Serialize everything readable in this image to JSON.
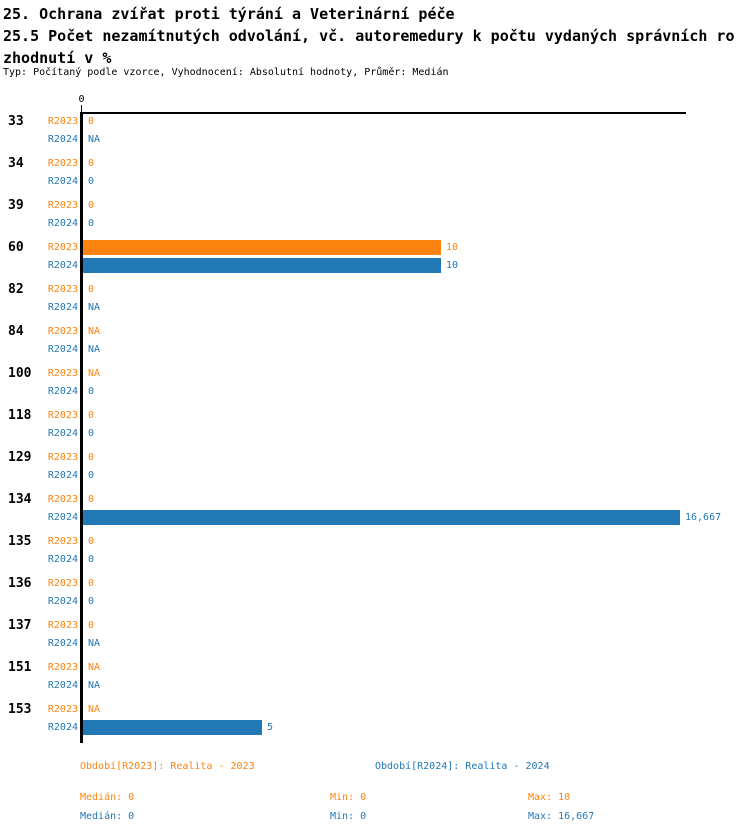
{
  "header": {
    "title": "25. Ochrana zvířat proti týrání a Veterinární péče",
    "subtitle_line1": "25.5 Počet nezamítnutých odvolání, vč. autoremedury k počtu vydaných správních ro",
    "subtitle_line2": "zhodnutí v %",
    "meta": "Typ: Počítaný podle vzorce, Vyhodnocení: Absolutní hodnoty, Průměr: Medián"
  },
  "colors": {
    "r2023": "#fc830f",
    "r2024": "#2277b5",
    "axis": "#000000",
    "text": "#000000",
    "background": "#ffffff"
  },
  "chart_data": {
    "type": "bar",
    "orientation": "horizontal",
    "title": "25.5 Počet nezamítnutých odvolání, vč. autoremedury k počtu vydaných správních rozhodnutí v %",
    "categories": [
      "33",
      "34",
      "39",
      "60",
      "82",
      "84",
      "100",
      "118",
      "129",
      "134",
      "135",
      "136",
      "137",
      "151",
      "153"
    ],
    "series": [
      {
        "name": "R2023",
        "color": "#fc830f",
        "values": [
          0,
          0,
          0,
          10,
          0,
          null,
          null,
          0,
          0,
          0,
          0,
          0,
          0,
          null,
          null
        ],
        "labels": [
          "0",
          "0",
          "0",
          "10",
          "0",
          "NA",
          "NA",
          "0",
          "0",
          "0",
          "0",
          "0",
          "0",
          "NA",
          "NA"
        ]
      },
      {
        "name": "R2024",
        "color": "#2277b5",
        "values": [
          null,
          0,
          0,
          10,
          null,
          null,
          0,
          0,
          0,
          16.667,
          0,
          0,
          null,
          null,
          5
        ],
        "labels": [
          "NA",
          "0",
          "0",
          "10",
          "NA",
          "NA",
          "0",
          "0",
          "0",
          "16,667",
          "0",
          "0",
          "NA",
          "NA",
          "5"
        ]
      }
    ],
    "x_axis": {
      "tick_label": "0",
      "min": 0,
      "max": 16.84
    },
    "grid": false,
    "legend_position": "bottom"
  },
  "legend": {
    "r2023": {
      "period": "Období[R2023]: Realita - 2023",
      "median": "Medián: 0",
      "min": "Min: 0",
      "max": "Max: 10"
    },
    "r2024": {
      "period": "Období[R2024]: Realita - 2024",
      "median": "Medián: 0",
      "min": "Min: 0",
      "max": "Max: 16,667"
    }
  }
}
